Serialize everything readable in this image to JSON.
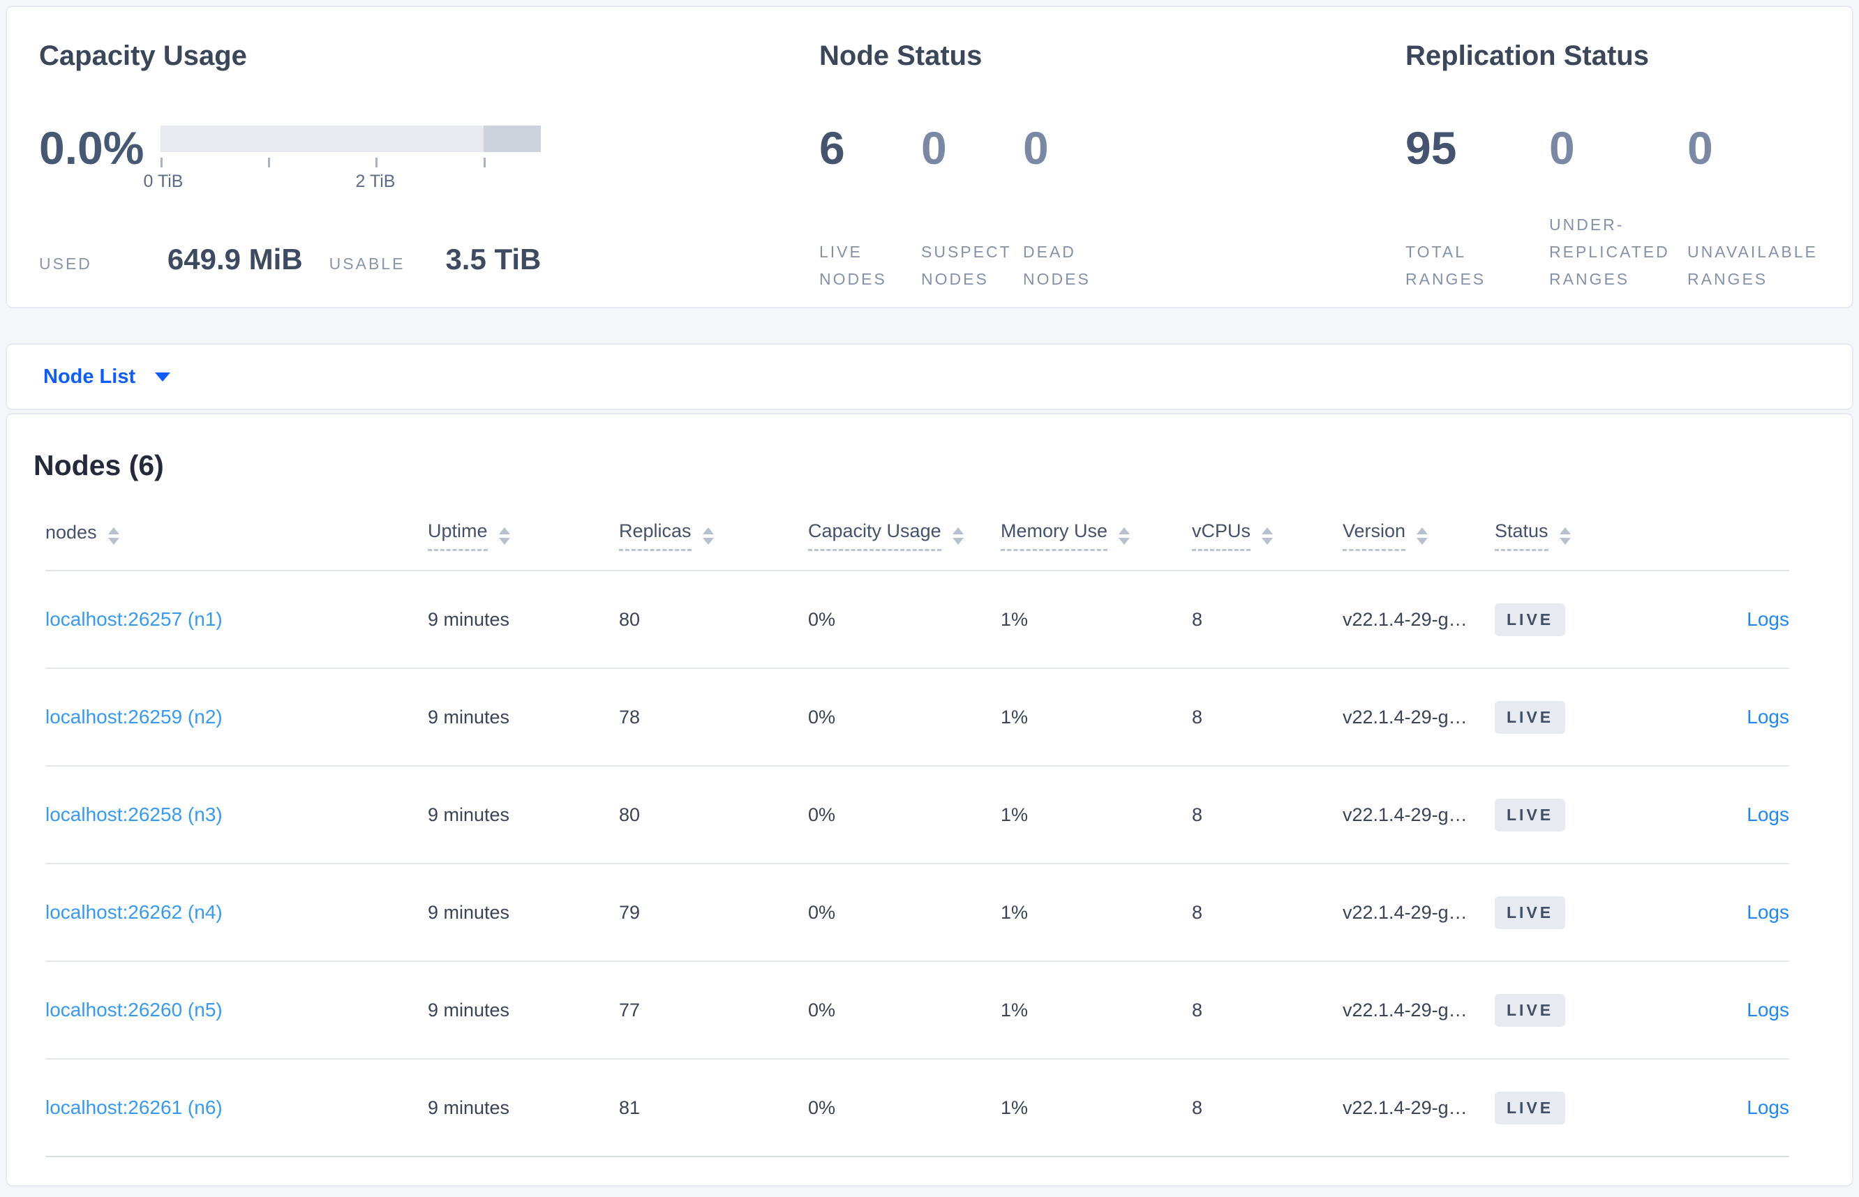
{
  "summary": {
    "capacity": {
      "title": "Capacity Usage",
      "percent": "0.0%",
      "ticks": [
        "0 TiB",
        "2 TiB"
      ],
      "used_label": "USED",
      "used_value": "649.9 MiB",
      "usable_label": "USABLE",
      "usable_value": "3.5 TiB"
    },
    "node_status": {
      "title": "Node Status",
      "stats": [
        {
          "value": "6",
          "label": "LIVE NODES"
        },
        {
          "value": "0",
          "label": "SUSPECT NODES"
        },
        {
          "value": "0",
          "label": "DEAD NODES"
        }
      ]
    },
    "replication": {
      "title": "Replication Status",
      "stats": [
        {
          "value": "95",
          "label": "TOTAL RANGES"
        },
        {
          "value": "0",
          "label": "UNDER-REPLICATED RANGES"
        },
        {
          "value": "0",
          "label": "UNAVAILABLE RANGES"
        }
      ]
    }
  },
  "view_selector": {
    "label": "Node List"
  },
  "nodes_section": {
    "title": "Nodes (6)",
    "columns": [
      "nodes",
      "Uptime",
      "Replicas",
      "Capacity Usage",
      "Memory Use",
      "vCPUs",
      "Version",
      "Status"
    ],
    "rows": [
      {
        "node": "localhost:26257 (n1)",
        "uptime": "9 minutes",
        "replicas": "80",
        "capacity": "0%",
        "memory": "1%",
        "vcpus": "8",
        "version": "v22.1.4-29-g…",
        "status": "LIVE",
        "logs": "Logs"
      },
      {
        "node": "localhost:26259 (n2)",
        "uptime": "9 minutes",
        "replicas": "78",
        "capacity": "0%",
        "memory": "1%",
        "vcpus": "8",
        "version": "v22.1.4-29-g…",
        "status": "LIVE",
        "logs": "Logs"
      },
      {
        "node": "localhost:26258 (n3)",
        "uptime": "9 minutes",
        "replicas": "80",
        "capacity": "0%",
        "memory": "1%",
        "vcpus": "8",
        "version": "v22.1.4-29-g…",
        "status": "LIVE",
        "logs": "Logs"
      },
      {
        "node": "localhost:26262 (n4)",
        "uptime": "9 minutes",
        "replicas": "79",
        "capacity": "0%",
        "memory": "1%",
        "vcpus": "8",
        "version": "v22.1.4-29-g…",
        "status": "LIVE",
        "logs": "Logs"
      },
      {
        "node": "localhost:26260 (n5)",
        "uptime": "9 minutes",
        "replicas": "77",
        "capacity": "0%",
        "memory": "1%",
        "vcpus": "8",
        "version": "v22.1.4-29-g…",
        "status": "LIVE",
        "logs": "Logs"
      },
      {
        "node": "localhost:26261 (n6)",
        "uptime": "9 minutes",
        "replicas": "81",
        "capacity": "0%",
        "memory": "1%",
        "vcpus": "8",
        "version": "v22.1.4-29-g…",
        "status": "LIVE",
        "logs": "Logs"
      }
    ]
  },
  "colors": {
    "page_background": "#f4f6fa",
    "card_border": "#e7eaf0",
    "title_text": "#3b4658",
    "big_number_dark": "#46536e",
    "big_number_light": "#7b88a3",
    "caps_label": "#8591a8",
    "gauge_track": "#e8eaf0",
    "gauge_dark_segment": "#cdd2dd",
    "selector_blue": "#0b5dff",
    "node_link_blue": "#369af5",
    "logs_link_blue": "#1f87f7",
    "badge_background": "#e7eaf1",
    "badge_text": "#424e66",
    "row_divider": "#e4e7ee"
  }
}
